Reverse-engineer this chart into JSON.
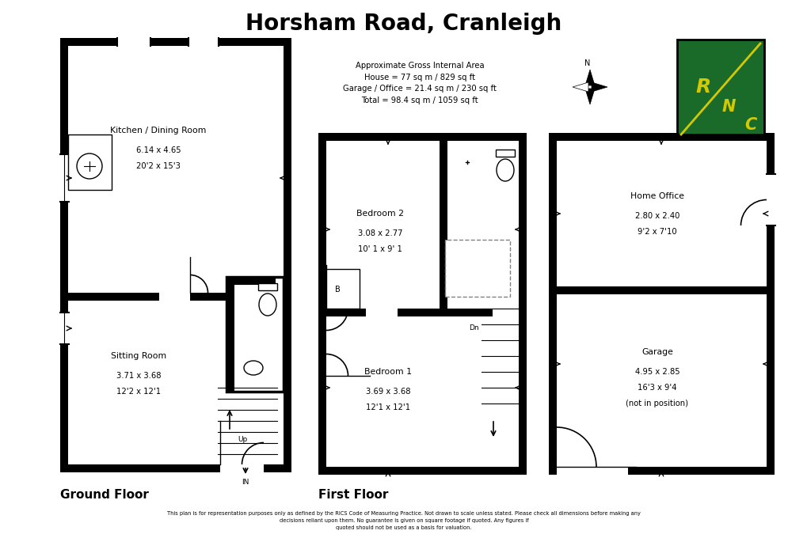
{
  "title": "Horsham Road, Cranleigh",
  "bg_color": "#ffffff",
  "wall_color": "#000000",
  "text_color": "#000000",
  "area_text": "Approximate Gross Internal Area\nHouse = 77 sq m / 829 sq ft\nGarage / Office = 21.4 sq m / 230 sq ft\nTotal = 98.4 sq m / 1059 sq ft",
  "footer_text": "This plan is for representation purposes only as defined by the RICS Code of Measuring Practice. Not drawn to scale unless stated. Please check all dimensions before making any\ndecisions reliant upon them. No guarantee is given on square footage if quoted. Any figures if\nquoted should not be used as a basis for valuation.",
  "ground_floor_label": "Ground Floor",
  "first_floor_label": "First Floor",
  "rooms": {
    "kitchen": {
      "label": "Kitchen / Dining Room",
      "dims": "6.14 x 4.65\n20'2 x 15'3"
    },
    "sitting": {
      "label": "Sitting Room",
      "dims": "3.71 x 3.68\n12'2 x 12'1"
    },
    "bed2": {
      "label": "Bedroom 2",
      "dims": "3.08 x 2.77\n10' 1 x 9' 1"
    },
    "bed1": {
      "label": "Bedroom 1",
      "dims": "3.69 x 3.68\n12'1 x 12'1"
    },
    "office": {
      "label": "Home Office",
      "dims": "2.80 x 2.40\n9'2 x 7'10"
    },
    "garage": {
      "label": "Garage",
      "dims": "4.95 x 2.85\n16'3 x 9'4\n(not in position)"
    }
  },
  "rnc_bg": "#1a6b2a",
  "rnc_text_color": "#d4c800"
}
